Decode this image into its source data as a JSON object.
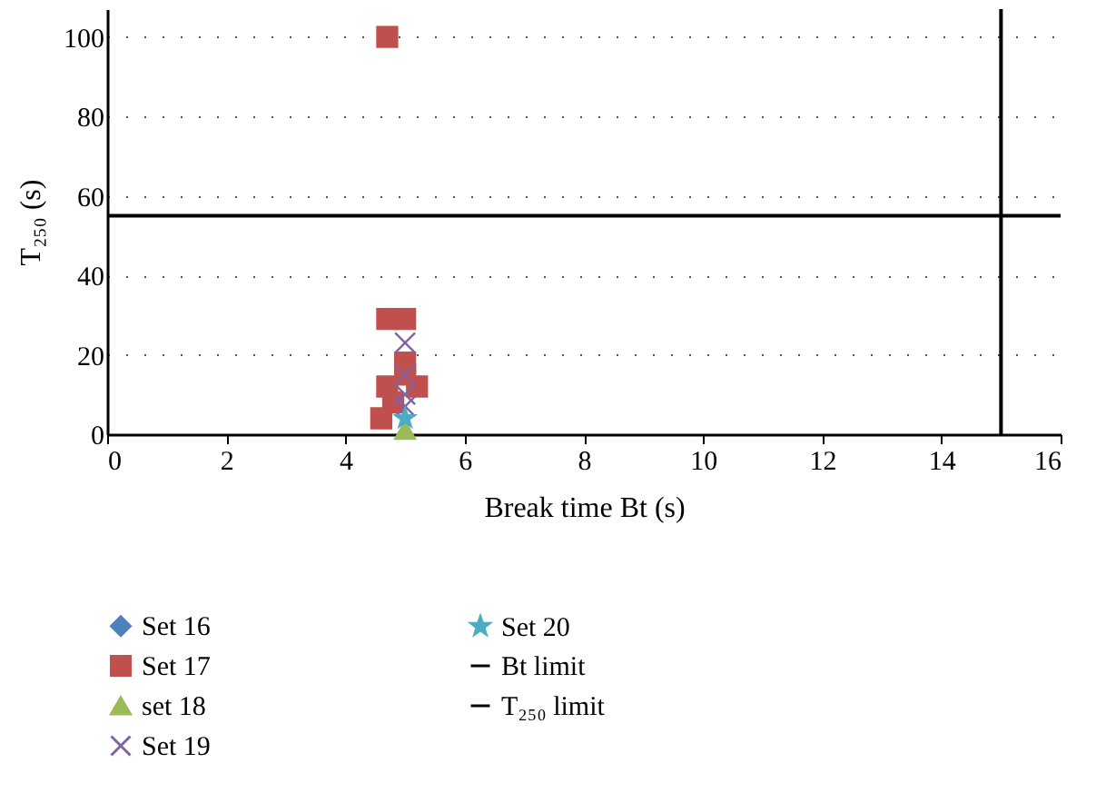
{
  "chart_data": {
    "type": "scatter",
    "xlabel": "Break time Bt (s)",
    "ylabel": "T₂₅₀ (s)",
    "xlim": [
      0,
      16
    ],
    "xticks": [
      0,
      2,
      4,
      6,
      8,
      10,
      12,
      14,
      16
    ],
    "ylim": [
      0,
      107
    ],
    "yticks": [
      0,
      20,
      40,
      60,
      80,
      100
    ],
    "grid": "y",
    "legend": "bottom",
    "series": [
      {
        "name": "Set 16",
        "color": "#4f81bd",
        "marker": "diamond"
      },
      {
        "name": "Set 17",
        "color": "#c0504d",
        "marker": "square",
        "x": [
          4.7,
          4.7,
          5.0,
          5.0,
          5.0,
          4.7,
          5.2,
          4.8,
          4.6
        ],
        "values": [
          100,
          29,
          29,
          18,
          15,
          12,
          12,
          8,
          4
        ]
      },
      {
        "name": "set 18",
        "color": "#9bbb59",
        "marker": "triangle",
        "x": [
          5.0
        ],
        "values": [
          1
        ]
      },
      {
        "name": "Set 19",
        "color": "#8064a2",
        "marker": "cross",
        "x": [
          5.0,
          5.0,
          5.0,
          5.0
        ],
        "values": [
          23,
          15,
          10,
          7
        ]
      },
      {
        "name": "Set 20",
        "color": "#4bacc6",
        "marker": "star",
        "x": [
          5.0
        ],
        "values": [
          4
        ]
      },
      {
        "name": "Bt limit",
        "type": "line",
        "color": "#000000",
        "x": [
          15,
          15
        ],
        "values": [
          0,
          107
        ]
      },
      {
        "name": "T₂₅₀ limit",
        "type": "line",
        "color": "#000000",
        "x": [
          0,
          16
        ],
        "values": [
          55,
          55
        ]
      }
    ]
  }
}
